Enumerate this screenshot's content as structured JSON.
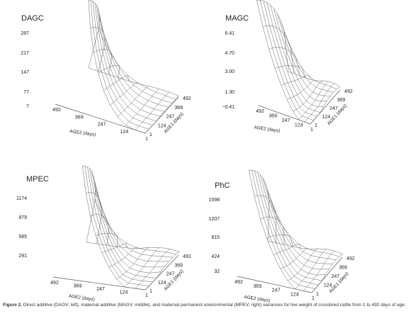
{
  "figure": {
    "panels": [
      {
        "title": "DAGC",
        "z_ticks": [
          "287",
          "217",
          "147",
          "77",
          "7"
        ],
        "age2_ticks": [
          "492",
          "369",
          "247",
          "124",
          "1"
        ],
        "age2_label": "AGE2 (days)",
        "age1_ticks": [
          "492",
          "369",
          "247",
          "124",
          "1"
        ],
        "age1_label": "AGE1 (days)"
      },
      {
        "title": "MAGC",
        "z_ticks": [
          "6.41",
          "4.70",
          "3.00",
          "1.30",
          "−0.41"
        ],
        "age2_ticks": [
          "492",
          "369",
          "247",
          "124",
          "1"
        ],
        "age2_label": "AGE2 (days)",
        "age1_ticks": [
          "492",
          "369",
          "247",
          "124",
          "1"
        ],
        "age1_label": "AGE1 (days)"
      },
      {
        "title": "MPEC",
        "z_ticks": [
          "1174",
          "879",
          "585",
          "291"
        ],
        "age2_ticks": [
          "492",
          "369",
          "247",
          "124",
          "1"
        ],
        "age2_label": "AGE2 (days)",
        "age1_ticks": [
          "492",
          "369",
          "247",
          "124",
          "1"
        ],
        "age1_label": "AGE1 (days)"
      },
      {
        "title": "PhC",
        "z_ticks": [
          "1598",
          "1207",
          "815",
          "424",
          "32"
        ],
        "age2_ticks": [
          "492",
          "369",
          "247",
          "124",
          "1"
        ],
        "age2_label": "AGE2 (days)",
        "age1_ticks": [
          "492",
          "369",
          "247",
          "124",
          "1"
        ],
        "age1_label": "AGE1 (days)"
      }
    ]
  },
  "caption": {
    "label": "Figure 2.",
    "text": "Direct additive (DAGV; left), maternal additive (MAGV; middle), and maternal permanent environmental (MPEV; right) variances for live weight of crossbred cattle from 1 to 492 days of age."
  }
}
